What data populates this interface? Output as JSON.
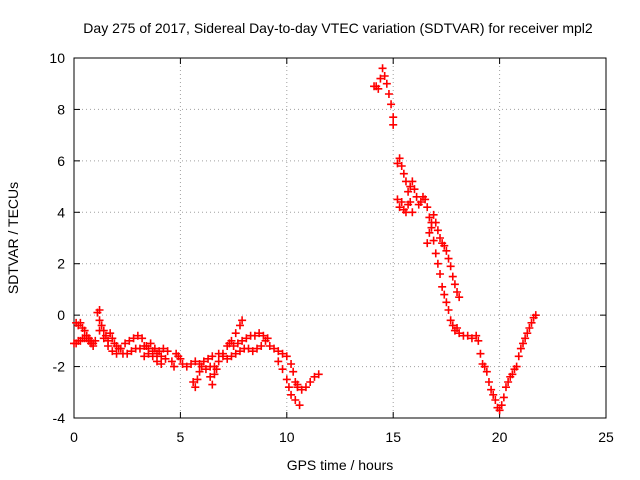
{
  "chart_data": {
    "type": "scatter",
    "title": "Day 275 of 2017, Sidereal Day-to-day VTEC variation (SDTVAR) for receiver mpl2",
    "xlabel": "GPS time / hours",
    "ylabel": "SDTVAR / TECUs",
    "xlim": [
      0,
      25
    ],
    "ylim": [
      -4,
      10
    ],
    "xticks": [
      0,
      5,
      10,
      15,
      20,
      25
    ],
    "yticks": [
      -4,
      -2,
      0,
      2,
      4,
      6,
      8,
      10
    ],
    "grid": true,
    "marker": "+",
    "marker_color": "#ff0000",
    "series": [
      {
        "name": "SDTVAR",
        "points": [
          [
            0.0,
            -1.1
          ],
          [
            0.1,
            -0.3
          ],
          [
            0.2,
            -0.4
          ],
          [
            0.3,
            -0.3
          ],
          [
            0.4,
            -0.5
          ],
          [
            0.5,
            -0.6
          ],
          [
            0.6,
            -0.8
          ],
          [
            0.7,
            -0.9
          ],
          [
            0.8,
            -1.0
          ],
          [
            0.9,
            -1.1
          ],
          [
            1.0,
            -1.0
          ],
          [
            0.1,
            -1.1
          ],
          [
            0.2,
            -1.0
          ],
          [
            0.3,
            -1.0
          ],
          [
            0.4,
            -0.9
          ],
          [
            0.5,
            -0.9
          ],
          [
            0.6,
            -0.9
          ],
          [
            0.7,
            -1.0
          ],
          [
            0.8,
            -1.1
          ],
          [
            0.9,
            -1.2
          ],
          [
            1.1,
            0.1
          ],
          [
            1.2,
            0.2
          ],
          [
            1.2,
            -0.2
          ],
          [
            1.3,
            -0.4
          ],
          [
            1.4,
            -0.6
          ],
          [
            1.5,
            -0.8
          ],
          [
            1.6,
            -1.0
          ],
          [
            1.7,
            -0.7
          ],
          [
            1.8,
            -0.9
          ],
          [
            1.9,
            -1.1
          ],
          [
            2.0,
            -1.2
          ],
          [
            1.2,
            -0.6
          ],
          [
            1.4,
            -0.9
          ],
          [
            1.6,
            -1.2
          ],
          [
            1.8,
            -1.4
          ],
          [
            2.0,
            -1.5
          ],
          [
            2.2,
            -1.3
          ],
          [
            2.4,
            -1.1
          ],
          [
            2.6,
            -1.0
          ],
          [
            2.8,
            -0.9
          ],
          [
            3.0,
            -0.8
          ],
          [
            3.2,
            -0.9
          ],
          [
            2.1,
            -1.3
          ],
          [
            2.3,
            -1.5
          ],
          [
            2.5,
            -1.5
          ],
          [
            2.7,
            -1.4
          ],
          [
            2.9,
            -1.3
          ],
          [
            3.1,
            -1.3
          ],
          [
            3.3,
            -1.2
          ],
          [
            3.5,
            -1.3
          ],
          [
            3.7,
            -1.4
          ],
          [
            3.9,
            -1.5
          ],
          [
            4.1,
            -1.6
          ],
          [
            4.3,
            -1.7
          ],
          [
            3.4,
            -1.2
          ],
          [
            3.6,
            -1.1
          ],
          [
            3.8,
            -1.3
          ],
          [
            4.0,
            -1.4
          ],
          [
            4.2,
            -1.3
          ],
          [
            4.4,
            -1.4
          ],
          [
            4.6,
            -1.8
          ],
          [
            4.7,
            -2.0
          ],
          [
            3.3,
            -1.6
          ],
          [
            3.5,
            -1.5
          ],
          [
            3.7,
            -1.6
          ],
          [
            3.9,
            -1.8
          ],
          [
            4.1,
            -1.9
          ],
          [
            4.8,
            -1.5
          ],
          [
            4.9,
            -1.6
          ],
          [
            5.0,
            -1.7
          ],
          [
            5.1,
            -1.9
          ],
          [
            5.3,
            -2.0
          ],
          [
            5.5,
            -1.9
          ],
          [
            5.7,
            -1.8
          ],
          [
            5.9,
            -1.9
          ],
          [
            6.1,
            -1.8
          ],
          [
            6.3,
            -1.7
          ],
          [
            6.5,
            -1.6
          ],
          [
            5.6,
            -2.6
          ],
          [
            5.7,
            -2.8
          ],
          [
            5.8,
            -2.5
          ],
          [
            5.9,
            -2.2
          ],
          [
            6.0,
            -2.0
          ],
          [
            6.2,
            -2.1
          ],
          [
            6.4,
            -2.4
          ],
          [
            6.5,
            -2.7
          ],
          [
            6.6,
            -2.3
          ],
          [
            6.7,
            -2.1
          ],
          [
            6.4,
            -2.0
          ],
          [
            6.6,
            -2.0
          ],
          [
            6.8,
            -1.8
          ],
          [
            7.0,
            -1.5
          ],
          [
            7.2,
            -1.2
          ],
          [
            7.4,
            -1.0
          ],
          [
            7.6,
            -0.7
          ],
          [
            7.8,
            -0.4
          ],
          [
            7.9,
            -0.2
          ],
          [
            6.8,
            -1.5
          ],
          [
            7.0,
            -1.6
          ],
          [
            7.2,
            -1.7
          ],
          [
            7.4,
            -1.6
          ],
          [
            7.6,
            -1.5
          ],
          [
            7.8,
            -1.4
          ],
          [
            8.0,
            -1.3
          ],
          [
            8.2,
            -1.3
          ],
          [
            8.4,
            -1.4
          ],
          [
            8.6,
            -1.3
          ],
          [
            8.8,
            -1.2
          ],
          [
            7.3,
            -1.1
          ],
          [
            7.5,
            -1.2
          ],
          [
            7.7,
            -1.1
          ],
          [
            7.9,
            -1.0
          ],
          [
            8.1,
            -0.9
          ],
          [
            8.3,
            -0.8
          ],
          [
            8.5,
            -0.8
          ],
          [
            8.7,
            -0.7
          ],
          [
            8.9,
            -0.8
          ],
          [
            9.1,
            -0.9
          ],
          [
            9.0,
            -1.0
          ],
          [
            9.2,
            -1.2
          ],
          [
            9.4,
            -1.3
          ],
          [
            9.6,
            -1.4
          ],
          [
            9.8,
            -1.5
          ],
          [
            10.0,
            -1.6
          ],
          [
            10.2,
            -1.9
          ],
          [
            10.3,
            -2.2
          ],
          [
            10.4,
            -2.6
          ],
          [
            10.5,
            -2.8
          ],
          [
            9.6,
            -1.8
          ],
          [
            9.8,
            -2.1
          ],
          [
            10.0,
            -2.5
          ],
          [
            10.1,
            -2.8
          ],
          [
            10.2,
            -3.1
          ],
          [
            10.4,
            -3.3
          ],
          [
            10.6,
            -3.5
          ],
          [
            10.5,
            -2.7
          ],
          [
            10.7,
            -2.9
          ],
          [
            10.9,
            -2.8
          ],
          [
            11.1,
            -2.6
          ],
          [
            11.3,
            -2.4
          ],
          [
            11.5,
            -2.3
          ],
          [
            14.1,
            8.9
          ],
          [
            14.2,
            8.9
          ],
          [
            14.3,
            8.8
          ],
          [
            14.4,
            9.2
          ],
          [
            14.5,
            9.6
          ],
          [
            14.6,
            9.3
          ],
          [
            14.7,
            9.0
          ],
          [
            14.8,
            8.6
          ],
          [
            14.9,
            8.2
          ],
          [
            15.0,
            7.7
          ],
          [
            15.0,
            7.4
          ],
          [
            15.2,
            5.9
          ],
          [
            15.3,
            6.1
          ],
          [
            15.4,
            5.8
          ],
          [
            15.5,
            5.5
          ],
          [
            15.6,
            5.2
          ],
          [
            15.7,
            4.8
          ],
          [
            15.8,
            4.4
          ],
          [
            15.9,
            4.0
          ],
          [
            15.2,
            4.5
          ],
          [
            15.3,
            4.2
          ],
          [
            15.4,
            4.4
          ],
          [
            15.5,
            4.1
          ],
          [
            15.6,
            4.0
          ],
          [
            15.7,
            4.3
          ],
          [
            15.8,
            5.0
          ],
          [
            15.9,
            5.2
          ],
          [
            16.0,
            4.9
          ],
          [
            16.1,
            4.6
          ],
          [
            16.2,
            4.3
          ],
          [
            16.3,
            4.4
          ],
          [
            16.4,
            4.6
          ],
          [
            16.5,
            4.5
          ],
          [
            16.6,
            4.2
          ],
          [
            16.7,
            3.8
          ],
          [
            16.8,
            3.4
          ],
          [
            16.9,
            2.9
          ],
          [
            17.0,
            2.4
          ],
          [
            17.1,
            2.0
          ],
          [
            17.2,
            1.6
          ],
          [
            17.3,
            1.1
          ],
          [
            16.6,
            2.8
          ],
          [
            16.7,
            3.2
          ],
          [
            16.8,
            3.6
          ],
          [
            16.9,
            3.9
          ],
          [
            17.0,
            3.6
          ],
          [
            17.1,
            3.3
          ],
          [
            17.2,
            3.0
          ],
          [
            17.3,
            2.8
          ],
          [
            17.4,
            2.7
          ],
          [
            17.5,
            2.5
          ],
          [
            17.6,
            2.2
          ],
          [
            17.7,
            1.9
          ],
          [
            17.8,
            1.5
          ],
          [
            17.9,
            1.2
          ],
          [
            18.0,
            0.9
          ],
          [
            18.1,
            0.7
          ],
          [
            17.4,
            0.8
          ],
          [
            17.5,
            0.5
          ],
          [
            17.6,
            0.2
          ],
          [
            17.7,
            -0.2
          ],
          [
            17.8,
            -0.4
          ],
          [
            17.9,
            -0.6
          ],
          [
            18.0,
            -0.5
          ],
          [
            18.1,
            -0.7
          ],
          [
            18.3,
            -0.8
          ],
          [
            18.5,
            -0.8
          ],
          [
            18.7,
            -0.9
          ],
          [
            18.9,
            -0.8
          ],
          [
            19.0,
            -1.0
          ],
          [
            19.1,
            -1.5
          ],
          [
            19.2,
            -1.9
          ],
          [
            19.3,
            -2.0
          ],
          [
            19.4,
            -2.2
          ],
          [
            19.5,
            -2.6
          ],
          [
            19.6,
            -2.9
          ],
          [
            19.7,
            -3.1
          ],
          [
            19.8,
            -3.3
          ],
          [
            19.9,
            -3.6
          ],
          [
            20.0,
            -3.7
          ],
          [
            20.1,
            -3.5
          ],
          [
            20.2,
            -3.2
          ],
          [
            20.3,
            -2.8
          ],
          [
            20.4,
            -2.6
          ],
          [
            20.5,
            -2.4
          ],
          [
            20.6,
            -2.3
          ],
          [
            20.7,
            -2.1
          ],
          [
            20.8,
            -2.0
          ],
          [
            20.9,
            -1.6
          ],
          [
            21.0,
            -1.3
          ],
          [
            21.1,
            -1.1
          ],
          [
            21.2,
            -0.9
          ],
          [
            21.3,
            -0.7
          ],
          [
            21.4,
            -0.5
          ],
          [
            21.5,
            -0.3
          ],
          [
            21.6,
            -0.1
          ],
          [
            21.7,
            0.0
          ]
        ]
      }
    ]
  }
}
